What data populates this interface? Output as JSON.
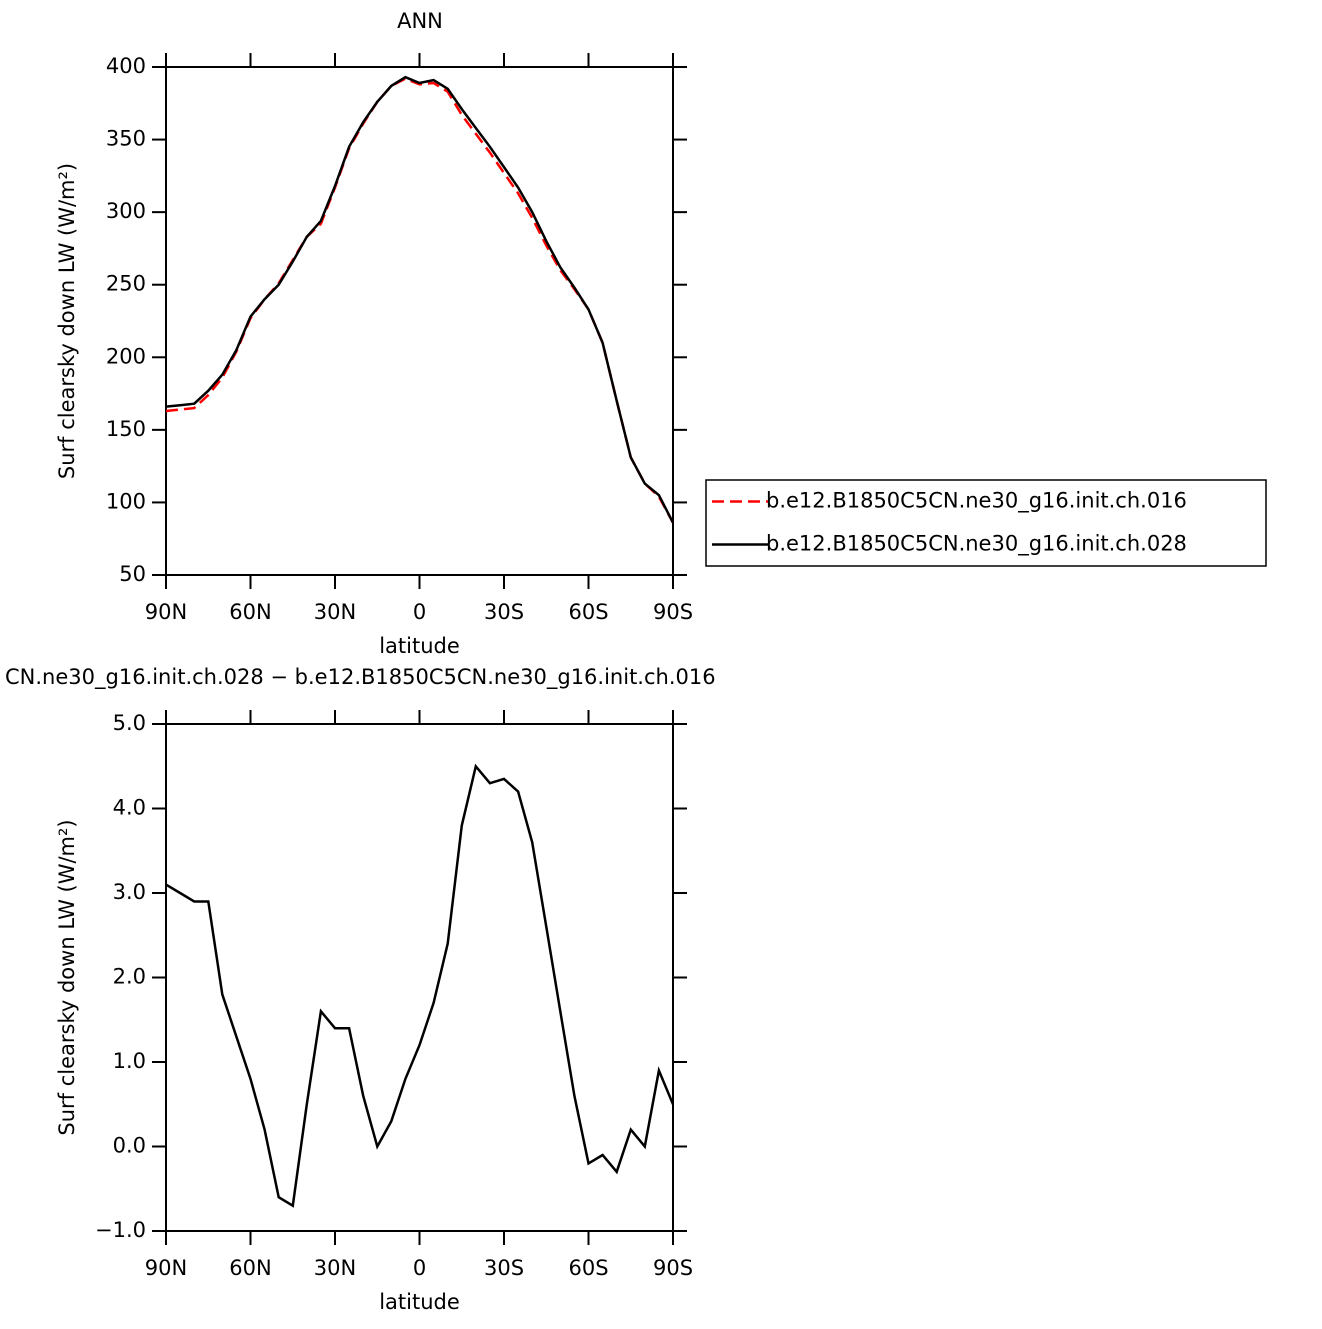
{
  "chart_data": [
    {
      "type": "line",
      "title": "ANN",
      "xlabel": "latitude",
      "ylabel": "Surf clearsky down LW (W/m²)",
      "xlim": [
        90,
        -90
      ],
      "xticks": [
        {
          "value": 90,
          "label": "90N"
        },
        {
          "value": 60,
          "label": "60N"
        },
        {
          "value": 30,
          "label": "30N"
        },
        0,
        {
          "value": -30,
          "label": "30S"
        },
        {
          "value": -60,
          "label": "60S"
        },
        {
          "value": -90,
          "label": "90S"
        }
      ],
      "ylim": [
        50,
        400
      ],
      "yticks": [
        50,
        100,
        150,
        200,
        250,
        300,
        350,
        400
      ],
      "x": [
        90,
        85,
        80,
        75,
        70,
        65,
        60,
        55,
        50,
        45,
        40,
        35,
        30,
        25,
        20,
        15,
        10,
        5,
        0,
        -5,
        -10,
        -15,
        -20,
        -25,
        -30,
        -35,
        -40,
        -45,
        -50,
        -55,
        -60,
        -65,
        -70,
        -75,
        -80,
        -85,
        -90
      ],
      "series": [
        {
          "name": "b.e12.B1850C5CN.ne30_g16.init.ch.016",
          "color": "#ff0000",
          "dashed": true,
          "values": [
            163,
            164,
            165,
            174,
            186,
            204,
            227,
            240,
            251,
            267,
            283,
            292,
            317,
            344,
            361,
            376,
            387,
            392,
            388,
            389,
            383,
            367,
            354,
            341,
            327,
            313,
            296,
            277,
            260,
            247,
            233,
            210,
            170,
            131,
            113,
            104,
            86
          ]
        },
        {
          "name": "b.e12.B1850C5CN.ne30_g16.init.ch.028",
          "color": "#000000",
          "dashed": false,
          "values": [
            166,
            167,
            168,
            177,
            188,
            205,
            228,
            240,
            250,
            266,
            283,
            294,
            318,
            345,
            362,
            376,
            387,
            393,
            389,
            391,
            385,
            371,
            358,
            345,
            331,
            317,
            300,
            280,
            262,
            248,
            233,
            210,
            170,
            131,
            113,
            105,
            86
          ]
        }
      ]
    },
    {
      "type": "line",
      "title": "CN.ne30_g16.init.ch.028 − b.e12.B1850C5CN.ne30_g16.init.ch.016",
      "xlabel": "latitude",
      "ylabel": "Surf clearsky down LW (W/m²)",
      "xlim": [
        90,
        -90
      ],
      "xticks": [
        {
          "value": 90,
          "label": "90N"
        },
        {
          "value": 60,
          "label": "60N"
        },
        {
          "value": 30,
          "label": "30N"
        },
        0,
        {
          "value": -30,
          "label": "30S"
        },
        {
          "value": -60,
          "label": "60S"
        },
        {
          "value": -90,
          "label": "90S"
        }
      ],
      "ylim": [
        -1,
        5
      ],
      "yticks": [
        {
          "value": -1,
          "label": "−1.0"
        },
        {
          "value": 0,
          "label": "0.0"
        },
        {
          "value": 1,
          "label": "1.0"
        },
        {
          "value": 2,
          "label": "2.0"
        },
        {
          "value": 3,
          "label": "3.0"
        },
        {
          "value": 4,
          "label": "4.0"
        },
        {
          "value": 5,
          "label": "5.0"
        }
      ],
      "x": [
        90,
        85,
        80,
        75,
        70,
        65,
        60,
        55,
        50,
        45,
        40,
        35,
        30,
        25,
        20,
        15,
        10,
        5,
        0,
        -5,
        -10,
        -15,
        -20,
        -25,
        -30,
        -35,
        -40,
        -45,
        -50,
        -55,
        -60,
        -65,
        -70,
        -75,
        -80,
        -85,
        -90
      ],
      "series": [
        {
          "color": "#000000",
          "dashed": false,
          "values": [
            3.1,
            3.0,
            2.9,
            2.9,
            1.8,
            1.3,
            0.8,
            0.2,
            -0.6,
            -0.7,
            0.5,
            1.6,
            1.4,
            1.4,
            0.6,
            0.0,
            0.3,
            0.8,
            1.2,
            1.7,
            2.4,
            3.8,
            4.5,
            4.3,
            4.35,
            4.2,
            3.6,
            2.6,
            1.6,
            0.6,
            -0.2,
            -0.1,
            -0.3,
            0.2,
            0.0,
            0.9,
            0.5
          ]
        }
      ]
    }
  ]
}
